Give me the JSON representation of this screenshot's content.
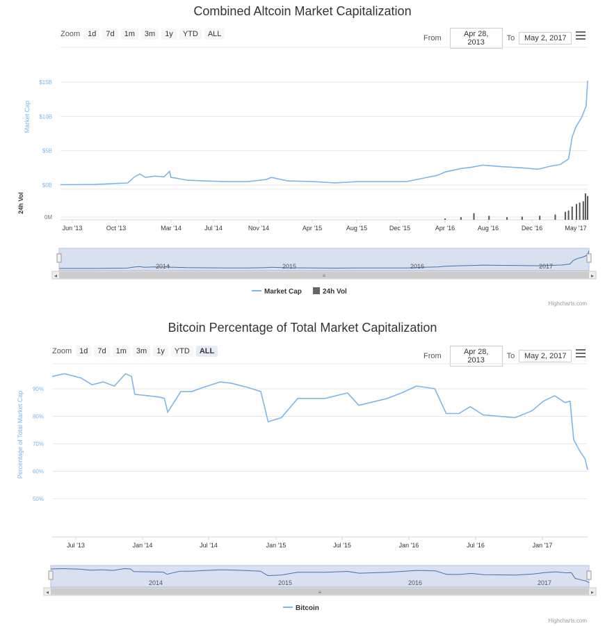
{
  "charts": [
    {
      "title": "Combined Altcoin Market Capitalization",
      "zoom": {
        "label": "Zoom",
        "buttons": [
          "1d",
          "7d",
          "1m",
          "3m",
          "1y",
          "YTD",
          "ALL"
        ],
        "active": ""
      },
      "range": {
        "from_label": "From",
        "from": "Apr 28, 2013",
        "to_label": "To",
        "to": "May 2, 2017"
      },
      "credit": "Highcharts.com",
      "colors": {
        "line": "#7cb5ec",
        "volume": "#555555",
        "grid": "#e6e6e6",
        "axis_label": "#7cb5ec"
      }
    },
    {
      "title": "Bitcoin Percentage of Total Market Capitalization",
      "zoom": {
        "label": "Zoom",
        "buttons": [
          "1d",
          "7d",
          "1m",
          "3m",
          "1y",
          "YTD",
          "ALL"
        ],
        "active": "ALL"
      },
      "range": {
        "from_label": "From",
        "from": "Apr 28, 2013",
        "to_label": "To",
        "to": "May 2, 2017"
      },
      "credit": "Highcharts.com",
      "colors": {
        "line": "#7cb5ec",
        "grid": "#e6e6e6",
        "axis_label": "#7cb5ec"
      }
    }
  ],
  "chart_data": [
    {
      "type": "line",
      "title": "Combined Altcoin Market Capitalization",
      "ylabel": "Market Cap",
      "ylim": [
        0,
        15
      ],
      "y_unit": "billion USD",
      "y_ticks": [
        "$0B",
        "$5B",
        "$10B",
        "$15B"
      ],
      "x_ticks": [
        "Jun '13",
        "Oct '13",
        "Mar '14",
        "Jul '14",
        "Nov '14",
        "Apr '15",
        "Aug '15",
        "Dec '15",
        "Apr '16",
        "Aug '16",
        "Dec '16",
        "May '17"
      ],
      "x": [
        "2013-04-28",
        "2013-08-01",
        "2013-11-01",
        "2013-11-20",
        "2013-12-05",
        "2013-12-20",
        "2014-01-15",
        "2014-02-10",
        "2014-02-25",
        "2014-03-01",
        "2014-03-15",
        "2014-04-15",
        "2014-06-01",
        "2014-08-01",
        "2014-10-01",
        "2014-11-20",
        "2014-12-05",
        "2015-01-20",
        "2015-04-01",
        "2015-06-01",
        "2015-08-01",
        "2015-10-01",
        "2015-12-15",
        "2016-02-01",
        "2016-03-10",
        "2016-04-01",
        "2016-05-15",
        "2016-06-15",
        "2016-07-15",
        "2016-09-01",
        "2016-11-01",
        "2016-12-15",
        "2017-01-15",
        "2017-02-15",
        "2017-03-10",
        "2017-03-20",
        "2017-03-31",
        "2017-04-15",
        "2017-04-28",
        "2017-05-02"
      ],
      "series": [
        {
          "name": "Market Cap",
          "values": [
            0.05,
            0.08,
            0.3,
            1.2,
            1.6,
            1.1,
            1.3,
            1.2,
            2.0,
            1.1,
            1.0,
            0.7,
            0.6,
            0.5,
            0.5,
            0.8,
            1.1,
            0.6,
            0.5,
            0.3,
            0.5,
            0.5,
            0.5,
            1.0,
            1.4,
            1.9,
            2.4,
            2.6,
            2.9,
            2.7,
            2.5,
            2.3,
            2.7,
            3.0,
            3.8,
            7.0,
            8.5,
            9.8,
            11.5,
            15.2
          ]
        }
      ],
      "volume": {
        "name": "24h Vol",
        "ylabel": "24h Vol",
        "y_tick": "0M",
        "x": [
          "2016-04-01",
          "2016-05-15",
          "2016-06-20",
          "2016-08-01",
          "2016-09-20",
          "2016-11-01",
          "2016-12-20",
          "2017-02-01",
          "2017-03-01",
          "2017-03-10",
          "2017-03-20",
          "2017-04-01",
          "2017-04-10",
          "2017-04-20",
          "2017-04-26",
          "2017-05-02"
        ],
        "values": [
          0.05,
          0.1,
          0.25,
          0.15,
          0.1,
          0.12,
          0.15,
          0.2,
          0.3,
          0.35,
          0.5,
          0.6,
          0.65,
          0.7,
          1.0,
          0.9
        ]
      },
      "navigator_labels": [
        "2014",
        "2015",
        "2016",
        "2017"
      ],
      "legend": [
        "Market Cap",
        "24h Vol"
      ],
      "legend_placement": "bottom-center",
      "grid": true
    },
    {
      "type": "line",
      "title": "Bitcoin Percentage of Total Market Capitalization",
      "ylabel": "Percentage of Total Market Cap",
      "ylim": [
        40,
        100
      ],
      "y_ticks": [
        "50%",
        "60%",
        "70%",
        "80%",
        "90%"
      ],
      "x_ticks": [
        "Jul '13",
        "Jan '14",
        "Jul '14",
        "Jan '15",
        "Jul '15",
        "Jan '16",
        "Jul '16",
        "Jan '17"
      ],
      "x": [
        "2013-04-28",
        "2013-06-01",
        "2013-07-15",
        "2013-08-15",
        "2013-09-15",
        "2013-10-15",
        "2013-11-15",
        "2013-12-01",
        "2013-12-10",
        "2014-01-15",
        "2014-02-15",
        "2014-03-01",
        "2014-03-10",
        "2014-04-15",
        "2014-05-15",
        "2014-06-15",
        "2014-08-01",
        "2014-09-01",
        "2014-10-15",
        "2014-11-20",
        "2014-12-10",
        "2015-01-15",
        "2015-03-01",
        "2015-05-15",
        "2015-07-15",
        "2015-08-15",
        "2015-09-15",
        "2015-11-01",
        "2015-12-10",
        "2016-01-20",
        "2016-02-15",
        "2016-03-10",
        "2016-04-10",
        "2016-05-15",
        "2016-06-15",
        "2016-07-20",
        "2016-09-01",
        "2016-10-15",
        "2016-12-01",
        "2017-01-01",
        "2017-02-01",
        "2017-03-01",
        "2017-03-15",
        "2017-03-25",
        "2017-04-10",
        "2017-04-25",
        "2017-05-02"
      ],
      "series": [
        {
          "name": "Bitcoin",
          "values": [
            94.5,
            95.5,
            94,
            91.5,
            92.5,
            91,
            95.5,
            94.5,
            88,
            87.5,
            87,
            86.5,
            81.5,
            89,
            89,
            90.5,
            92.5,
            92,
            90.5,
            89,
            78,
            79.5,
            86.5,
            86.5,
            88.5,
            84,
            85,
            86.5,
            88.5,
            91,
            90.5,
            90,
            81,
            81,
            83.5,
            80.5,
            80,
            79.5,
            82,
            85.5,
            87.5,
            85,
            85.5,
            71.5,
            67.5,
            64.5,
            60.5
          ]
        }
      ],
      "navigator_labels": [
        "2014",
        "2015",
        "2016",
        "2017"
      ],
      "legend": [
        "Bitcoin"
      ],
      "legend_placement": "bottom-center",
      "grid": true
    }
  ]
}
